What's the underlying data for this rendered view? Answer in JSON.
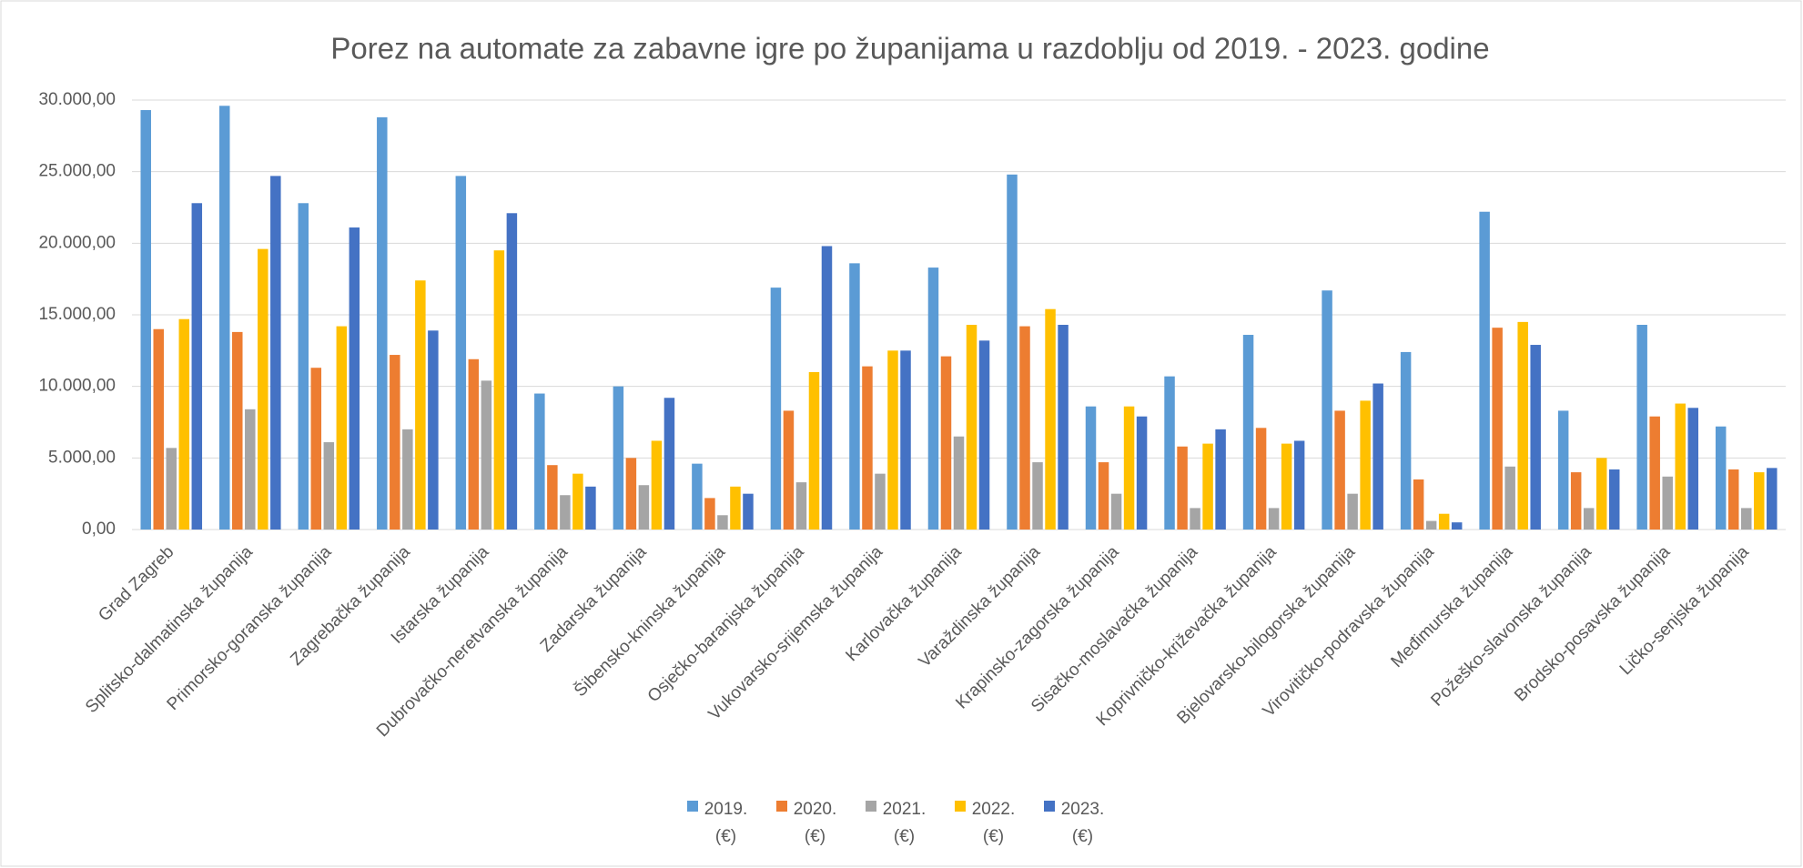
{
  "chart_data": {
    "type": "bar",
    "title": "Porez na automate za zabavne igre po županijama u razdoblju od 2019. - 2023. godine",
    "categories": [
      "Grad Zagreb",
      "Splitsko-dalmatinska županija",
      "Primorsko-goranska županija",
      "Zagrebačka županija",
      "Istarska županija",
      "Dubrovačko-neretvanska županija",
      "Zadarska županija",
      "Šibensko-kninska županija",
      "Osječko-baranjska županija",
      "Vukovarsko-srijemska županija",
      "Karlovačka županija",
      "Varaždinska županija",
      "Krapinsko-zagorska županija",
      "Sisačko-moslavačka županija",
      "Koprivničko-križevačka županija",
      "Bjelovarsko-bilogorska županija",
      "Virovitičko-podravska županija",
      "Međimurska županija",
      "Požeško-slavonska županija",
      "Brodsko-posavska županija",
      "Ličko-senjska županija"
    ],
    "series": [
      {
        "name": "2019. (€)",
        "color": "#5b9bd5",
        "values": [
          29300,
          29600,
          22800,
          28800,
          24700,
          9500,
          10000,
          4600,
          16900,
          18600,
          18300,
          24800,
          8600,
          10700,
          13600,
          16700,
          12400,
          22200,
          8300,
          14300,
          7200
        ]
      },
      {
        "name": "2020. (€)",
        "color": "#ed7d31",
        "values": [
          14000,
          13800,
          11300,
          12200,
          11900,
          4500,
          5000,
          2200,
          8300,
          11400,
          12100,
          14200,
          4700,
          5800,
          7100,
          8300,
          3500,
          14100,
          4000,
          7900,
          4200
        ]
      },
      {
        "name": "2021. (€)",
        "color": "#a5a5a5",
        "values": [
          5700,
          8400,
          6100,
          7000,
          10400,
          2400,
          3100,
          1000,
          3300,
          3900,
          6500,
          4700,
          2500,
          1500,
          1500,
          2500,
          600,
          4400,
          1500,
          3700,
          1500
        ]
      },
      {
        "name": "2022. (€)",
        "color": "#ffc000",
        "values": [
          14700,
          19600,
          14200,
          17400,
          19500,
          3900,
          6200,
          3000,
          11000,
          12500,
          14300,
          15400,
          8600,
          6000,
          6000,
          9000,
          1100,
          14500,
          5000,
          8800,
          4000
        ]
      },
      {
        "name": "2023. (€)",
        "color": "#4472c4",
        "values": [
          22800,
          24700,
          21100,
          13900,
          22100,
          3000,
          9200,
          2500,
          19800,
          12500,
          13200,
          14300,
          7900,
          7000,
          6200,
          10200,
          500,
          12900,
          4200,
          8500,
          4300
        ]
      }
    ],
    "ylim": [
      0,
      30000
    ],
    "yticks": [
      {
        "value": 0,
        "label": "0,00"
      },
      {
        "value": 5000,
        "label": "5.000,00"
      },
      {
        "value": 10000,
        "label": "10.000,00"
      },
      {
        "value": 15000,
        "label": "15.000,00"
      },
      {
        "value": 20000,
        "label": "20.000,00"
      },
      {
        "value": 25000,
        "label": "25.000,00"
      },
      {
        "value": 30000,
        "label": "30.000,00"
      }
    ],
    "grid": true,
    "legend": "bottom"
  }
}
